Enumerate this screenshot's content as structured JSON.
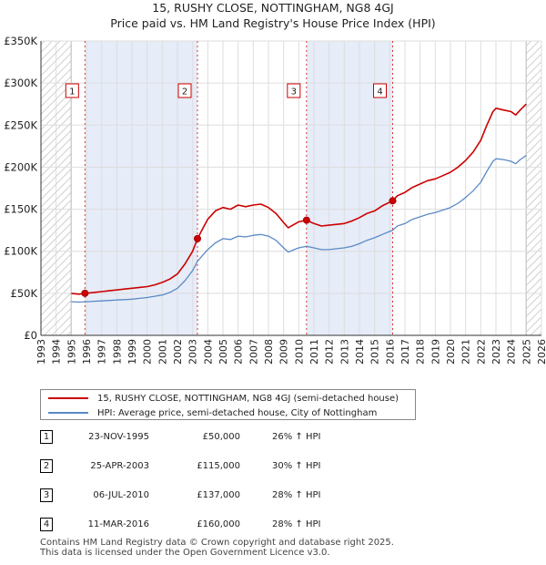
{
  "title_line1": "15, RUSHY CLOSE, NOTTINGHAM, NG8 4GJ",
  "title_line2": "Price paid vs. HM Land Registry's House Price Index (HPI)",
  "legend": {
    "property": "15, RUSHY CLOSE, NOTTINGHAM, NG8 4GJ (semi-detached house)",
    "hpi": "HPI: Average price, semi-detached house, City of Nottingham"
  },
  "colors": {
    "property": "#cc0000",
    "hpi": "#5b8ac6",
    "marker_border": "#cc0000",
    "grid": "#dddddd"
  },
  "transactions": [
    {
      "num": "1",
      "date": "23-NOV-1995",
      "price": "£50,000",
      "hpi": "26% ↑ HPI"
    },
    {
      "num": "2",
      "date": "25-APR-2003",
      "price": "£115,000",
      "hpi": "30% ↑ HPI"
    },
    {
      "num": "3",
      "date": "06-JUL-2010",
      "price": "£137,000",
      "hpi": "28% ↑ HPI"
    },
    {
      "num": "4",
      "date": "11-MAR-2016",
      "price": "£160,000",
      "hpi": "28% ↑ HPI"
    }
  ],
  "footer_line1": "Contains HM Land Registry data © Crown copyright and database right 2025.",
  "footer_line2": "This data is licensed under the Open Government Licence v3.0.",
  "chart_data": {
    "type": "line",
    "title": "15, RUSHY CLOSE, NOTTINGHAM, NG8 4GJ — Price paid vs. HM Land Registry's House Price Index (HPI)",
    "xlabel": "",
    "ylabel": "",
    "xlim": [
      1993,
      2026
    ],
    "ylim": [
      0,
      350000
    ],
    "x_ticks": [
      1993,
      1994,
      1995,
      1996,
      1997,
      1998,
      1999,
      2000,
      2001,
      2002,
      2003,
      2004,
      2005,
      2006,
      2007,
      2008,
      2009,
      2010,
      2011,
      2012,
      2013,
      2014,
      2015,
      2016,
      2017,
      2018,
      2019,
      2020,
      2021,
      2022,
      2023,
      2024,
      2025,
      2026
    ],
    "y_ticks": [
      {
        "value": 0,
        "label": "£0"
      },
      {
        "value": 50000,
        "label": "£50K"
      },
      {
        "value": 100000,
        "label": "£100K"
      },
      {
        "value": 150000,
        "label": "£150K"
      },
      {
        "value": 200000,
        "label": "£200K"
      },
      {
        "value": 250000,
        "label": "£250K"
      },
      {
        "value": 300000,
        "label": "£300K"
      },
      {
        "value": 350000,
        "label": "£350K"
      }
    ],
    "hatched_ranges": [
      [
        1993,
        1995.0
      ],
      [
        2025.0,
        2026
      ]
    ],
    "sale_markers": [
      {
        "label": "1",
        "x": 1995.9,
        "y": 50000,
        "shade_to": 2003.32
      },
      {
        "label": "2",
        "x": 2003.32,
        "y": 115000,
        "shade_to": null
      },
      {
        "label": "3",
        "x": 2010.51,
        "y": 137000,
        "shade_to": 2016.19
      },
      {
        "label": "4",
        "x": 2016.19,
        "y": 160000,
        "shade_to": null
      }
    ],
    "series": [
      {
        "name": "15, RUSHY CLOSE, NOTTINGHAM, NG8 4GJ (semi-detached house)",
        "x": [
          1995.0,
          1995.5,
          1995.9,
          1996.5,
          1997.0,
          1997.5,
          1998.0,
          1998.5,
          1999.0,
          1999.5,
          2000.0,
          2000.5,
          2001.0,
          2001.5,
          2002.0,
          2002.5,
          2003.0,
          2003.32,
          2003.7,
          2004.0,
          2004.5,
          2005.0,
          2005.5,
          2006.0,
          2006.5,
          2007.0,
          2007.5,
          2008.0,
          2008.5,
          2009.0,
          2009.3,
          2009.7,
          2010.0,
          2010.51,
          2011.0,
          2011.5,
          2012.0,
          2012.5,
          2013.0,
          2013.5,
          2014.0,
          2014.5,
          2015.0,
          2015.5,
          2016.19,
          2016.5,
          2017.0,
          2017.5,
          2018.0,
          2018.5,
          2019.0,
          2019.5,
          2020.0,
          2020.5,
          2021.0,
          2021.5,
          2022.0,
          2022.4,
          2022.8,
          2023.0,
          2023.5,
          2024.0,
          2024.3,
          2024.6,
          2025.0
        ],
        "values": [
          50000,
          49000,
          50000,
          51000,
          52000,
          53000,
          54000,
          55000,
          56000,
          57000,
          58000,
          60000,
          63000,
          67000,
          73000,
          85000,
          100000,
          115000,
          128000,
          138000,
          148000,
          152000,
          150000,
          155000,
          153000,
          155000,
          156000,
          152000,
          145000,
          134000,
          128000,
          132000,
          135000,
          137000,
          133000,
          130000,
          131000,
          132000,
          133000,
          136000,
          140000,
          145000,
          148000,
          154000,
          160000,
          166000,
          170000,
          176000,
          180000,
          184000,
          186000,
          190000,
          194000,
          200000,
          208000,
          218000,
          232000,
          250000,
          266000,
          270000,
          268000,
          266000,
          262000,
          268000,
          275000
        ]
      },
      {
        "name": "HPI: Average price, semi-detached house, City of Nottingham",
        "x": [
          1995.0,
          1995.5,
          1996.0,
          1996.5,
          1997.0,
          1997.5,
          1998.0,
          1998.5,
          1999.0,
          1999.5,
          2000.0,
          2000.5,
          2001.0,
          2001.5,
          2002.0,
          2002.5,
          2003.0,
          2003.32,
          2003.7,
          2004.0,
          2004.5,
          2005.0,
          2005.5,
          2006.0,
          2006.5,
          2007.0,
          2007.5,
          2008.0,
          2008.5,
          2009.0,
          2009.3,
          2009.7,
          2010.0,
          2010.51,
          2011.0,
          2011.5,
          2012.0,
          2012.5,
          2013.0,
          2013.5,
          2014.0,
          2014.5,
          2015.0,
          2015.5,
          2016.19,
          2016.5,
          2017.0,
          2017.5,
          2018.0,
          2018.5,
          2019.0,
          2019.5,
          2020.0,
          2020.5,
          2021.0,
          2021.5,
          2022.0,
          2022.4,
          2022.8,
          2023.0,
          2023.5,
          2024.0,
          2024.3,
          2024.6,
          2025.0
        ],
        "values": [
          40000,
          39500,
          40000,
          40500,
          41000,
          41500,
          42000,
          42500,
          43000,
          44000,
          45000,
          46500,
          48000,
          51000,
          56000,
          65000,
          77000,
          88000,
          96000,
          102000,
          110000,
          115000,
          114000,
          118000,
          117000,
          119000,
          120000,
          118000,
          113000,
          104000,
          99000,
          102000,
          104000,
          106000,
          104000,
          102000,
          102000,
          103000,
          104000,
          106000,
          109000,
          113000,
          116000,
          120000,
          125000,
          130000,
          133000,
          138000,
          141000,
          144000,
          146000,
          149000,
          152000,
          157000,
          164000,
          172000,
          182000,
          195000,
          207000,
          210000,
          209000,
          207000,
          204000,
          209000,
          214000
        ]
      }
    ]
  }
}
